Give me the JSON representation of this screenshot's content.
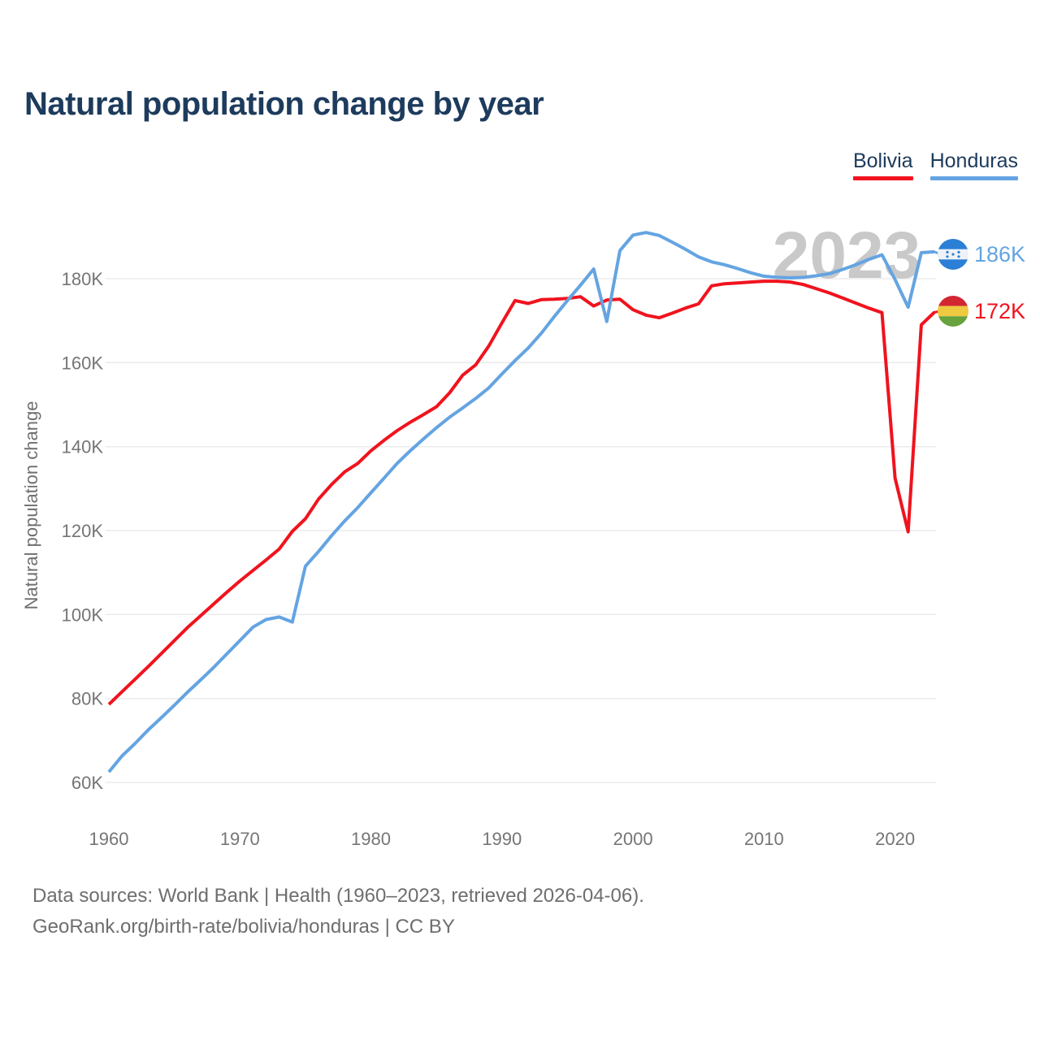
{
  "header": {
    "title": "Natural population change by year"
  },
  "chart_data": {
    "type": "line",
    "title": "Natural population change by year",
    "xlabel": "",
    "ylabel": "Natural population change",
    "watermark": "2023",
    "unit": "thousands (K)",
    "grid": true,
    "legend_position": "top-right",
    "xlim": [
      1960,
      2023
    ],
    "ylim_k": [
      54,
      196
    ],
    "x_ticks": [
      1960,
      1970,
      1980,
      1990,
      2000,
      2010,
      2020
    ],
    "y_ticks": [
      {
        "value": 60,
        "label": "60K"
      },
      {
        "value": 80,
        "label": "80K"
      },
      {
        "value": 100,
        "label": "100K"
      },
      {
        "value": 120,
        "label": "120K"
      },
      {
        "value": 140,
        "label": "140K"
      },
      {
        "value": 160,
        "label": "160K"
      },
      {
        "value": 180,
        "label": "180K"
      }
    ],
    "years": [
      1960,
      1961,
      1962,
      1963,
      1964,
      1965,
      1966,
      1967,
      1968,
      1969,
      1970,
      1971,
      1972,
      1973,
      1974,
      1975,
      1976,
      1977,
      1978,
      1979,
      1980,
      1981,
      1982,
      1983,
      1984,
      1985,
      1986,
      1987,
      1988,
      1989,
      1990,
      1991,
      1992,
      1993,
      1994,
      1995,
      1996,
      1997,
      1998,
      1999,
      2000,
      2001,
      2002,
      2003,
      2004,
      2005,
      2006,
      2007,
      2008,
      2009,
      2010,
      2011,
      2012,
      2013,
      2014,
      2015,
      2016,
      2017,
      2018,
      2019,
      2020,
      2021,
      2022,
      2023
    ],
    "series": [
      {
        "name": "Bolivia",
        "color": "#f0131e",
        "end_label": "172K",
        "values": [
          78.6,
          81.6,
          84.6,
          87.6,
          90.7,
          93.8,
          96.9,
          99.7,
          102.5,
          105.3,
          108,
          110.5,
          113,
          115.6,
          119.8,
          122.8,
          127.5,
          131,
          134,
          136,
          139,
          141.5,
          143.8,
          145.8,
          147.6,
          149.5,
          152.8,
          157,
          159.5,
          164,
          169.5,
          174.8,
          174.1,
          175,
          175.1,
          175.3,
          175.7,
          173.5,
          174.9,
          175.1,
          172.6,
          171.3,
          170.7,
          171.8,
          173,
          174,
          178.3,
          178.8,
          179,
          179.2,
          179.4,
          179.4,
          179.2,
          178.6,
          177.6,
          176.6,
          175.4,
          174.2,
          173,
          171.9,
          132.5,
          119.7,
          169,
          172
        ]
      },
      {
        "name": "Honduras",
        "color": "#64a4e2",
        "end_label": "186K",
        "values": [
          62.5,
          66.3,
          69.3,
          72.5,
          75.4,
          78.4,
          81.5,
          84.4,
          87.4,
          90.6,
          93.8,
          97,
          98.8,
          99.4,
          98.2,
          111.5,
          115,
          118.8,
          122.3,
          125.5,
          129,
          132.5,
          136,
          139,
          141.8,
          144.5,
          147,
          149.2,
          151.5,
          154,
          157.3,
          160.5,
          163.5,
          167,
          171,
          174.8,
          178.5,
          182.3,
          169.8,
          186.7,
          190.4,
          191,
          190.3,
          188.7,
          187,
          185.2,
          184,
          183.3,
          182.4,
          181.4,
          180.6,
          180.3,
          180.2,
          180.3,
          180.7,
          181.2,
          182.2,
          183.3,
          184.6,
          185.7,
          179.8,
          173.2,
          186.2,
          186.4
        ]
      }
    ]
  },
  "footer": {
    "line1": "Data sources: World Bank | Health (1960–2023, retrieved 2026-04-06).",
    "line2": "GeoRank.org/birth-rate/bolivia/honduras | CC BY"
  }
}
